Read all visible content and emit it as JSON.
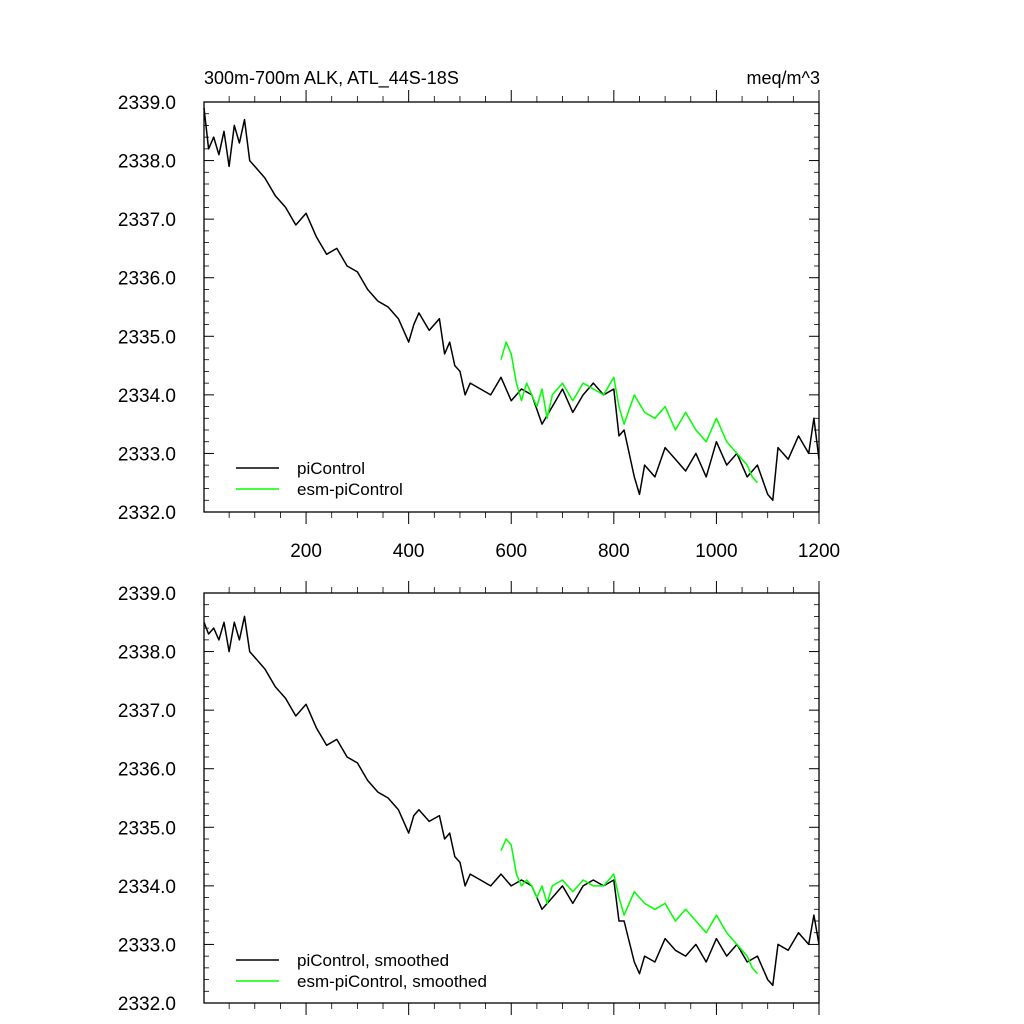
{
  "chart_data": [
    {
      "type": "line",
      "title": "300m-700m ALK, ATL_44S-18S",
      "units": "meq/m^3",
      "xlim": [
        1,
        1200
      ],
      "ylim": [
        2332.0,
        2339.0
      ],
      "xticks": [
        200,
        400,
        600,
        800,
        1000,
        1200
      ],
      "xtick_labels": [
        "200",
        "400",
        "600",
        "800",
        "1000",
        "1200"
      ],
      "yticks": [
        2332.0,
        2333.0,
        2334.0,
        2335.0,
        2336.0,
        2337.0,
        2338.0,
        2339.0
      ],
      "ytick_labels": [
        "2332.0",
        "2333.0",
        "2334.0",
        "2335.0",
        "2336.0",
        "2337.0",
        "2338.0",
        "2339.0"
      ],
      "grid": false,
      "legend_position": "bottom-left",
      "series": [
        {
          "name": "piControl",
          "color": "#000000",
          "x": [
            1,
            10,
            20,
            30,
            40,
            50,
            60,
            70,
            80,
            90,
            100,
            120,
            140,
            160,
            180,
            200,
            220,
            240,
            260,
            280,
            300,
            320,
            340,
            360,
            380,
            400,
            410,
            420,
            440,
            460,
            470,
            480,
            490,
            500,
            510,
            520,
            540,
            560,
            580,
            600,
            620,
            640,
            660,
            680,
            700,
            720,
            740,
            760,
            780,
            800,
            810,
            820,
            840,
            850,
            860,
            880,
            900,
            920,
            940,
            960,
            980,
            1000,
            1020,
            1040,
            1060,
            1080,
            1100,
            1110,
            1120,
            1140,
            1160,
            1180,
            1190,
            1200
          ],
          "y": [
            2338.9,
            2338.2,
            2338.4,
            2338.1,
            2338.5,
            2337.9,
            2338.6,
            2338.3,
            2338.7,
            2338.0,
            2337.9,
            2337.7,
            2337.4,
            2337.2,
            2336.9,
            2337.1,
            2336.7,
            2336.4,
            2336.5,
            2336.2,
            2336.1,
            2335.8,
            2335.6,
            2335.5,
            2335.3,
            2334.9,
            2335.2,
            2335.4,
            2335.1,
            2335.3,
            2334.7,
            2334.9,
            2334.5,
            2334.4,
            2334.0,
            2334.2,
            2334.1,
            2334.0,
            2334.3,
            2333.9,
            2334.1,
            2334.0,
            2333.5,
            2333.8,
            2334.1,
            2333.7,
            2334.0,
            2334.2,
            2334.0,
            2334.1,
            2333.3,
            2333.4,
            2332.6,
            2332.3,
            2332.8,
            2332.6,
            2333.1,
            2332.9,
            2332.7,
            2333.0,
            2332.6,
            2333.2,
            2332.8,
            2333.0,
            2332.6,
            2332.8,
            2332.3,
            2332.2,
            2333.1,
            2332.9,
            2333.3,
            2333.0,
            2333.6,
            2332.9
          ]
        },
        {
          "name": "esm-piControl",
          "color": "#00ff00",
          "x": [
            580,
            590,
            600,
            610,
            620,
            630,
            640,
            650,
            660,
            670,
            680,
            700,
            720,
            740,
            760,
            780,
            800,
            810,
            820,
            840,
            860,
            880,
            900,
            920,
            940,
            960,
            980,
            1000,
            1020,
            1040,
            1060,
            1070,
            1080
          ],
          "y": [
            2334.6,
            2334.9,
            2334.7,
            2334.2,
            2333.9,
            2334.2,
            2334.0,
            2333.8,
            2334.1,
            2333.6,
            2334.0,
            2334.2,
            2333.9,
            2334.2,
            2334.1,
            2334.0,
            2334.3,
            2333.8,
            2333.5,
            2334.0,
            2333.7,
            2333.6,
            2333.8,
            2333.4,
            2333.7,
            2333.4,
            2333.2,
            2333.6,
            2333.2,
            2333.0,
            2332.8,
            2332.6,
            2332.5
          ]
        }
      ]
    },
    {
      "type": "line",
      "xlim": [
        1,
        1200
      ],
      "ylim": [
        2332.0,
        2339.0
      ],
      "xticks": [
        200,
        400,
        600,
        800,
        1000,
        1200
      ],
      "yticks": [
        2332.0,
        2333.0,
        2334.0,
        2335.0,
        2336.0,
        2337.0,
        2338.0,
        2339.0
      ],
      "ytick_labels": [
        "2332.0",
        "2333.0",
        "2334.0",
        "2335.0",
        "2336.0",
        "2337.0",
        "2338.0",
        "2339.0"
      ],
      "grid": false,
      "legend_position": "bottom-left",
      "series": [
        {
          "name": "piControl, smoothed",
          "color": "#000000",
          "x": [
            1,
            10,
            20,
            30,
            40,
            50,
            60,
            70,
            80,
            90,
            100,
            120,
            140,
            160,
            180,
            200,
            220,
            240,
            260,
            280,
            300,
            320,
            340,
            360,
            380,
            400,
            410,
            420,
            440,
            460,
            470,
            480,
            490,
            500,
            510,
            520,
            540,
            560,
            580,
            600,
            620,
            640,
            660,
            680,
            700,
            720,
            740,
            760,
            780,
            800,
            810,
            820,
            840,
            850,
            860,
            880,
            900,
            920,
            940,
            960,
            980,
            1000,
            1020,
            1040,
            1060,
            1080,
            1100,
            1110,
            1120,
            1140,
            1160,
            1180,
            1190,
            1200
          ],
          "y": [
            2338.5,
            2338.3,
            2338.4,
            2338.2,
            2338.5,
            2338.0,
            2338.5,
            2338.2,
            2338.6,
            2338.0,
            2337.9,
            2337.7,
            2337.4,
            2337.2,
            2336.9,
            2337.1,
            2336.7,
            2336.4,
            2336.5,
            2336.2,
            2336.1,
            2335.8,
            2335.6,
            2335.5,
            2335.3,
            2334.9,
            2335.2,
            2335.3,
            2335.1,
            2335.2,
            2334.8,
            2334.9,
            2334.5,
            2334.4,
            2334.0,
            2334.2,
            2334.1,
            2334.0,
            2334.2,
            2334.0,
            2334.1,
            2334.0,
            2333.6,
            2333.8,
            2334.0,
            2333.7,
            2334.0,
            2334.1,
            2334.0,
            2334.1,
            2333.4,
            2333.4,
            2332.7,
            2332.5,
            2332.8,
            2332.7,
            2333.1,
            2332.9,
            2332.8,
            2333.0,
            2332.7,
            2333.1,
            2332.8,
            2333.0,
            2332.7,
            2332.8,
            2332.4,
            2332.3,
            2333.0,
            2332.9,
            2333.2,
            2333.0,
            2333.5,
            2333.0
          ]
        },
        {
          "name": "esm-piControl, smoothed",
          "color": "#00ff00",
          "x": [
            580,
            590,
            600,
            610,
            620,
            630,
            640,
            650,
            660,
            670,
            680,
            700,
            720,
            740,
            760,
            780,
            800,
            810,
            820,
            840,
            860,
            880,
            900,
            920,
            940,
            960,
            980,
            1000,
            1020,
            1040,
            1060,
            1070,
            1080
          ],
          "y": [
            2334.6,
            2334.8,
            2334.7,
            2334.2,
            2334.0,
            2334.1,
            2334.0,
            2333.8,
            2334.0,
            2333.7,
            2334.0,
            2334.1,
            2333.9,
            2334.1,
            2334.0,
            2334.0,
            2334.2,
            2333.8,
            2333.5,
            2333.9,
            2333.7,
            2333.6,
            2333.7,
            2333.4,
            2333.6,
            2333.4,
            2333.2,
            2333.5,
            2333.2,
            2333.0,
            2332.8,
            2332.6,
            2332.5
          ]
        }
      ]
    }
  ]
}
